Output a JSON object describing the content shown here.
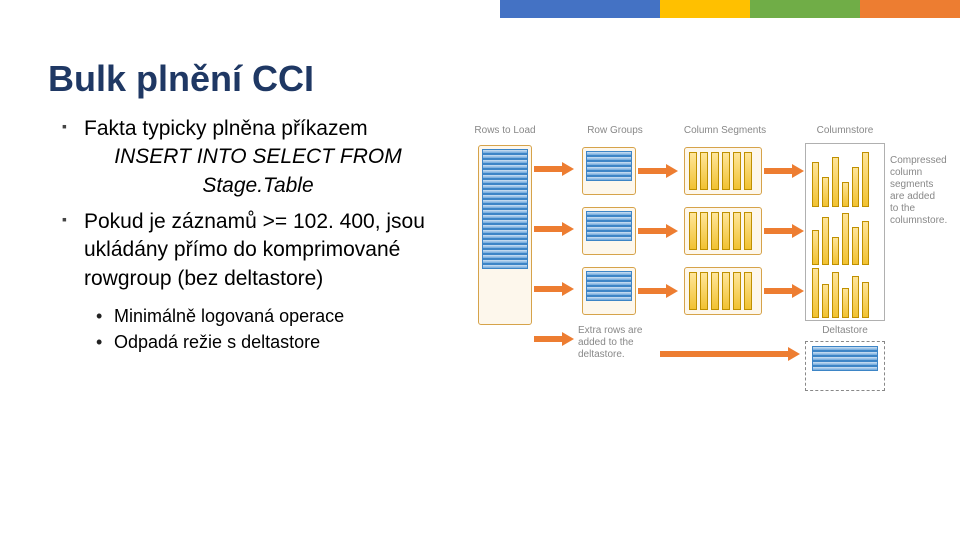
{
  "topbar_colors": [
    "#4472c4",
    "#ffc000",
    "#70ad47",
    "#ed7d31"
  ],
  "topbar_widths": [
    160,
    90,
    110,
    100
  ],
  "title": "Bulk plnění CCI",
  "title_color": "#1f3864",
  "bullets": [
    {
      "text": "Fakta typicky plněna příkazem",
      "em": "INSERT INTO SELECT FROM Stage.Table"
    },
    {
      "text": "Pokud je záznamů >= 102. 400, jsou ukládány přímo do komprimované rowgroup (bez deltastore)"
    }
  ],
  "subbullets": [
    "Minimálně logovaná operace",
    "Odpadá režie s deltastore"
  ],
  "diagram": {
    "labels": {
      "rows_to_load": "Rows to Load",
      "row_groups": "Row Groups",
      "column_segments": "Column Segments",
      "columnstore": "Columnstore",
      "compressed_note": "Compressed column segments are added to the columnstore.",
      "extra_rows": "Extra rows are added to the deltastore.",
      "deltastore": "Deltastore"
    },
    "colors": {
      "row_fill": "#6fa8dc",
      "row_border": "#3d85c6",
      "seg_fill": "#f1c232",
      "seg_border": "#bf9000",
      "group_border": "#d6a34a",
      "arrow": "#ed7d31",
      "label_text": "#888888"
    },
    "bar_heights": [
      [
        45,
        30,
        50,
        25,
        40,
        55
      ],
      [
        35,
        48,
        28,
        52,
        38,
        44
      ],
      [
        50,
        34,
        46,
        30,
        42,
        36
      ]
    ]
  }
}
